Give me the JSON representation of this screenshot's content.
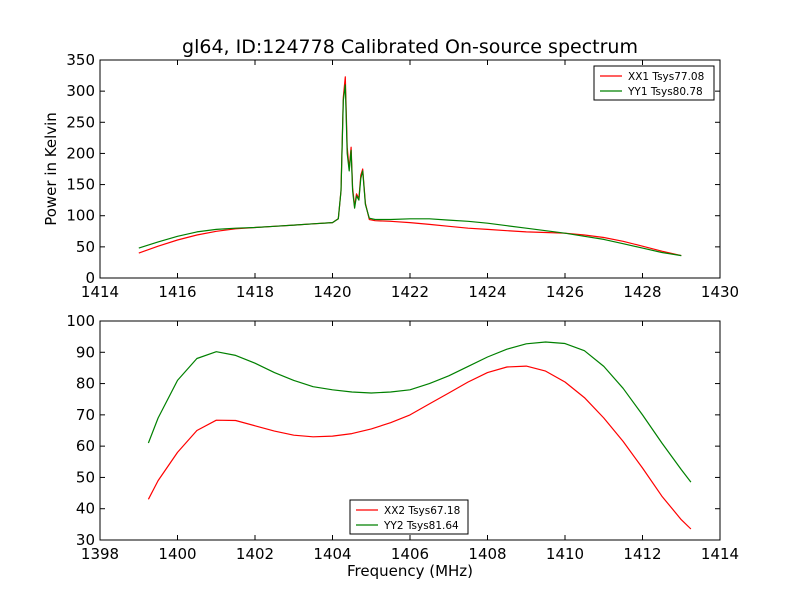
{
  "figure_title": "gl64, ID:124778 Calibrated On-source spectrum",
  "chart_data": [
    {
      "type": "line",
      "ylabel": "Power in Kelvin",
      "xlabel": "",
      "xlim": [
        1414,
        1430
      ],
      "ylim": [
        0,
        350
      ],
      "xticks": [
        1414,
        1416,
        1418,
        1420,
        1422,
        1424,
        1426,
        1428,
        1430
      ],
      "yticks": [
        0,
        50,
        100,
        150,
        200,
        250,
        300,
        350
      ],
      "grid": false,
      "legend_position": "top-right",
      "series": [
        {
          "name": "XX1 Tsys77.08",
          "color": "#ff0000",
          "x": [
            1415.0,
            1415.5,
            1416.0,
            1416.5,
            1417.0,
            1417.5,
            1418.0,
            1418.5,
            1419.0,
            1419.5,
            1420.0,
            1420.15,
            1420.22,
            1420.28,
            1420.33,
            1420.38,
            1420.43,
            1420.48,
            1420.52,
            1420.57,
            1420.62,
            1420.68,
            1420.73,
            1420.78,
            1420.85,
            1420.95,
            1421.1,
            1421.5,
            1422.0,
            1422.5,
            1423.0,
            1423.5,
            1424.0,
            1424.5,
            1425.0,
            1425.5,
            1426.0,
            1426.5,
            1427.0,
            1427.5,
            1428.0,
            1428.5,
            1429.0
          ],
          "y": [
            40,
            51,
            61,
            69,
            75,
            79,
            81,
            83,
            85,
            87,
            89,
            95,
            140,
            290,
            323,
            210,
            175,
            210,
            145,
            115,
            135,
            128,
            165,
            175,
            120,
            94,
            92,
            91,
            89,
            86,
            83,
            80,
            78,
            76,
            74,
            73,
            72,
            69,
            65,
            59,
            51,
            43,
            36
          ]
        },
        {
          "name": "YY1 Tsys80.78",
          "color": "#008000",
          "x": [
            1415.0,
            1415.5,
            1416.0,
            1416.5,
            1417.0,
            1417.5,
            1418.0,
            1418.5,
            1419.0,
            1419.5,
            1420.0,
            1420.15,
            1420.22,
            1420.28,
            1420.33,
            1420.38,
            1420.43,
            1420.48,
            1420.52,
            1420.57,
            1420.62,
            1420.68,
            1420.73,
            1420.78,
            1420.85,
            1420.95,
            1421.1,
            1421.5,
            1422.0,
            1422.5,
            1423.0,
            1423.5,
            1424.0,
            1424.5,
            1425.0,
            1425.5,
            1426.0,
            1426.5,
            1427.0,
            1427.5,
            1428.0,
            1428.5,
            1429.0
          ],
          "y": [
            48,
            58,
            67,
            74,
            78,
            80,
            81,
            83,
            85,
            87,
            89,
            95,
            140,
            285,
            310,
            200,
            172,
            205,
            140,
            112,
            132,
            125,
            160,
            172,
            118,
            96,
            94,
            94,
            95,
            95,
            93,
            91,
            88,
            84,
            80,
            76,
            72,
            67,
            62,
            55,
            48,
            41,
            36
          ]
        }
      ]
    },
    {
      "type": "line",
      "ylabel": "",
      "xlabel": "Frequency (MHz)",
      "xlim": [
        1398,
        1414
      ],
      "ylim": [
        30,
        100
      ],
      "xticks": [
        1398,
        1400,
        1402,
        1404,
        1406,
        1408,
        1410,
        1412,
        1414
      ],
      "yticks": [
        30,
        40,
        50,
        60,
        70,
        80,
        90,
        100
      ],
      "grid": false,
      "legend_position": "bottom-center",
      "series": [
        {
          "name": "XX2 Tsys67.18",
          "color": "#ff0000",
          "x": [
            1399.25,
            1399.5,
            1400.0,
            1400.5,
            1401.0,
            1401.5,
            1402.0,
            1402.5,
            1403.0,
            1403.5,
            1404.0,
            1404.5,
            1405.0,
            1405.5,
            1406.0,
            1406.5,
            1407.0,
            1407.5,
            1408.0,
            1408.5,
            1409.0,
            1409.5,
            1410.0,
            1410.5,
            1411.0,
            1411.5,
            1412.0,
            1412.5,
            1413.0,
            1413.25
          ],
          "y": [
            43,
            49,
            58,
            65,
            68.3,
            68.2,
            66.5,
            64.8,
            63.5,
            63,
            63.2,
            64,
            65.5,
            67.5,
            70,
            73.5,
            77,
            80.5,
            83.5,
            85.3,
            85.6,
            84,
            80.5,
            75.5,
            69,
            61.5,
            53,
            44,
            36.5,
            33.5
          ]
        },
        {
          "name": "YY2 Tsys81.64",
          "color": "#008000",
          "x": [
            1399.25,
            1399.5,
            1400.0,
            1400.5,
            1401.0,
            1401.5,
            1402.0,
            1402.5,
            1403.0,
            1403.5,
            1404.0,
            1404.5,
            1405.0,
            1405.5,
            1406.0,
            1406.5,
            1407.0,
            1407.5,
            1408.0,
            1408.5,
            1409.0,
            1409.5,
            1410.0,
            1410.5,
            1411.0,
            1411.5,
            1412.0,
            1412.5,
            1413.0,
            1413.25
          ],
          "y": [
            61,
            69,
            81,
            88,
            90.2,
            89,
            86.5,
            83.5,
            81,
            79,
            78,
            77.3,
            77,
            77.3,
            78,
            80,
            82.5,
            85.5,
            88.5,
            91,
            92.7,
            93.3,
            92.8,
            90.5,
            85.5,
            78.5,
            70,
            61,
            52.5,
            48.5
          ]
        }
      ]
    }
  ]
}
